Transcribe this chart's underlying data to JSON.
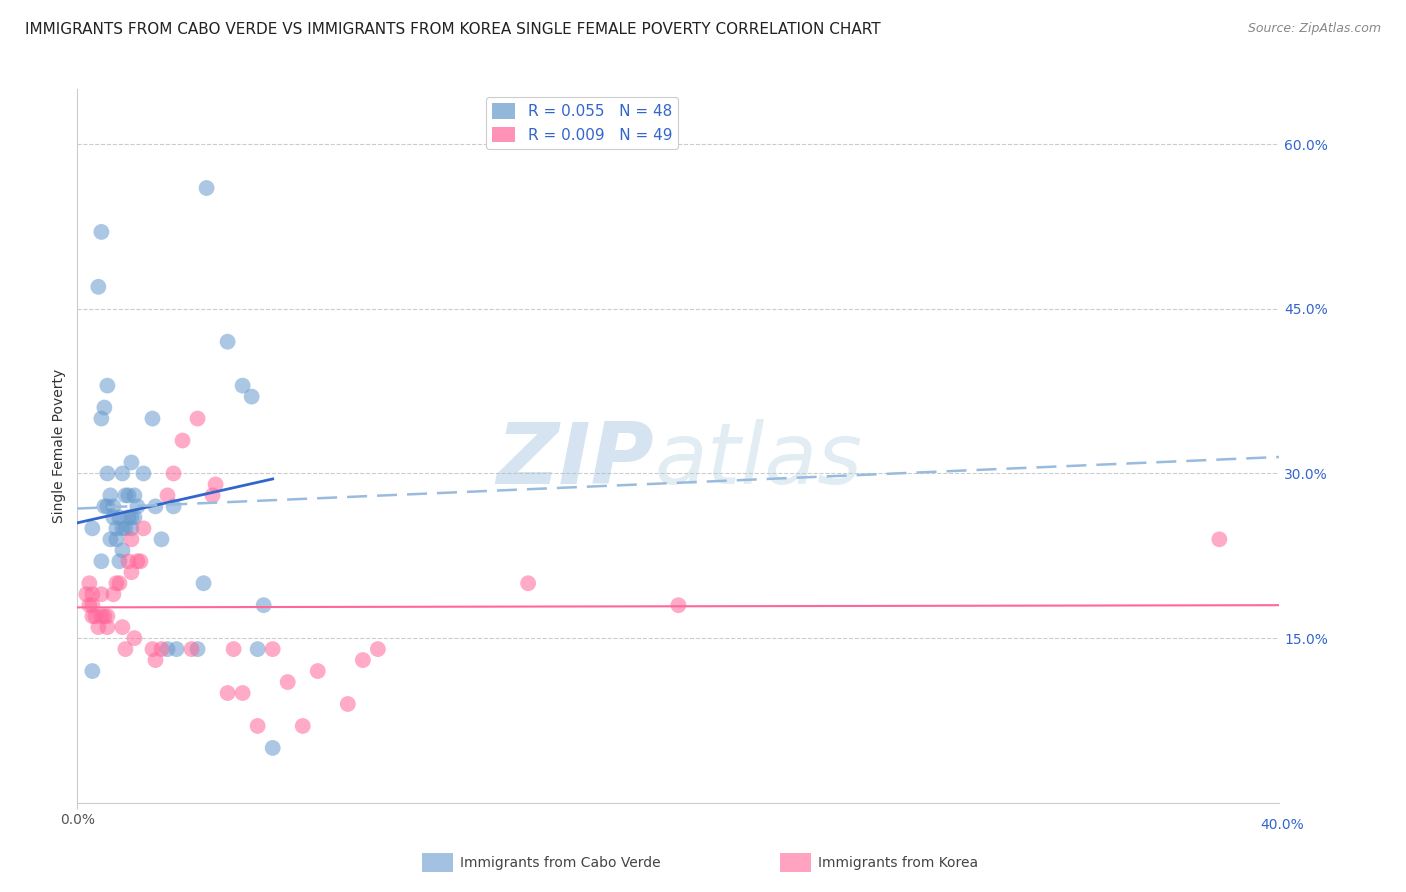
{
  "title": "IMMIGRANTS FROM CABO VERDE VS IMMIGRANTS FROM KOREA SINGLE FEMALE POVERTY CORRELATION CHART",
  "source": "Source: ZipAtlas.com",
  "ylabel": "Single Female Poverty",
  "right_ytick_labels": [
    "60.0%",
    "45.0%",
    "30.0%",
    "15.0%"
  ],
  "right_ytick_values": [
    0.6,
    0.45,
    0.3,
    0.15
  ],
  "xlim": [
    0.0,
    0.4
  ],
  "ylim": [
    0.0,
    0.65
  ],
  "cabo_verde_color": "#6699CC",
  "korea_color": "#FF6699",
  "cabo_verde_line_color": "#3366CC",
  "korea_dashed_color": "#99BBDD",
  "korea_solid_color": "#FF6699",
  "cabo_verde_points_x": [
    0.005,
    0.005,
    0.007,
    0.008,
    0.008,
    0.008,
    0.009,
    0.009,
    0.01,
    0.01,
    0.01,
    0.011,
    0.011,
    0.012,
    0.012,
    0.013,
    0.013,
    0.014,
    0.014,
    0.015,
    0.015,
    0.015,
    0.016,
    0.016,
    0.017,
    0.017,
    0.018,
    0.018,
    0.018,
    0.019,
    0.019,
    0.02,
    0.022,
    0.025,
    0.026,
    0.028,
    0.03,
    0.032,
    0.033,
    0.04,
    0.042,
    0.043,
    0.05,
    0.055,
    0.058,
    0.06,
    0.062,
    0.065
  ],
  "cabo_verde_points_y": [
    0.12,
    0.25,
    0.47,
    0.52,
    0.35,
    0.22,
    0.27,
    0.36,
    0.3,
    0.27,
    0.38,
    0.28,
    0.24,
    0.27,
    0.26,
    0.25,
    0.24,
    0.22,
    0.26,
    0.23,
    0.25,
    0.3,
    0.28,
    0.25,
    0.28,
    0.26,
    0.26,
    0.25,
    0.31,
    0.26,
    0.28,
    0.27,
    0.3,
    0.35,
    0.27,
    0.24,
    0.14,
    0.27,
    0.14,
    0.14,
    0.2,
    0.56,
    0.42,
    0.38,
    0.37,
    0.14,
    0.18,
    0.05
  ],
  "korea_points_x": [
    0.003,
    0.004,
    0.004,
    0.005,
    0.005,
    0.005,
    0.006,
    0.007,
    0.008,
    0.008,
    0.009,
    0.01,
    0.01,
    0.012,
    0.013,
    0.014,
    0.015,
    0.016,
    0.017,
    0.018,
    0.018,
    0.019,
    0.02,
    0.021,
    0.022,
    0.025,
    0.026,
    0.028,
    0.03,
    0.032,
    0.035,
    0.038,
    0.04,
    0.045,
    0.046,
    0.05,
    0.052,
    0.055,
    0.06,
    0.065,
    0.07,
    0.075,
    0.08,
    0.09,
    0.095,
    0.1,
    0.15,
    0.2,
    0.38
  ],
  "korea_points_y": [
    0.19,
    0.18,
    0.2,
    0.18,
    0.17,
    0.19,
    0.17,
    0.16,
    0.17,
    0.19,
    0.17,
    0.17,
    0.16,
    0.19,
    0.2,
    0.2,
    0.16,
    0.14,
    0.22,
    0.21,
    0.24,
    0.15,
    0.22,
    0.22,
    0.25,
    0.14,
    0.13,
    0.14,
    0.28,
    0.3,
    0.33,
    0.14,
    0.35,
    0.28,
    0.29,
    0.1,
    0.14,
    0.1,
    0.07,
    0.14,
    0.11,
    0.07,
    0.12,
    0.09,
    0.13,
    0.14,
    0.2,
    0.18,
    0.24
  ],
  "cabo_verde_trend_x": [
    0.0,
    0.065
  ],
  "cabo_verde_trend_y": [
    0.255,
    0.295
  ],
  "korea_dashed_trend_x": [
    0.0,
    0.4
  ],
  "korea_dashed_trend_y": [
    0.268,
    0.315
  ],
  "korea_solid_trend_x": [
    0.0,
    0.4
  ],
  "korea_solid_trend_y": [
    0.178,
    0.18
  ],
  "watermark_line1": "ZIP",
  "watermark_line2": "atlas",
  "background_color": "#FFFFFF",
  "grid_color": "#CCCCCC",
  "title_fontsize": 11,
  "label_fontsize": 10,
  "tick_fontsize": 10,
  "legend_fontsize": 11,
  "legend_label1": "R = 0.055",
  "legend_n1": "N = 48",
  "legend_label2": "R = 0.009",
  "legend_n2": "N = 49",
  "bottom_label1": "Immigrants from Cabo Verde",
  "bottom_label2": "Immigrants from Korea"
}
